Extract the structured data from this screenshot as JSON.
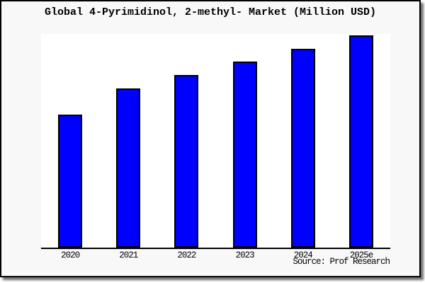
{
  "frame": {
    "background": "#f8f8f8",
    "border_color": "#000000",
    "plot_background": "#ffffff",
    "axis_color": "#000000"
  },
  "chart_data": {
    "type": "bar",
    "title": "Global 4-Pyrimidinol, 2-methyl- Market (Million USD)",
    "categories": [
      "2020",
      "2021",
      "2022",
      "2023",
      "2024",
      "2025e"
    ],
    "values_pct_of_max": [
      62.7,
      75.0,
      81.3,
      87.7,
      93.7,
      100.0
    ],
    "xlabel": "",
    "ylabel": "",
    "y_ticks": [],
    "grid": false,
    "legend": false,
    "bar_color": "#0000ff",
    "bar_border_color": "#000000",
    "source": "Source: Prof Research"
  }
}
